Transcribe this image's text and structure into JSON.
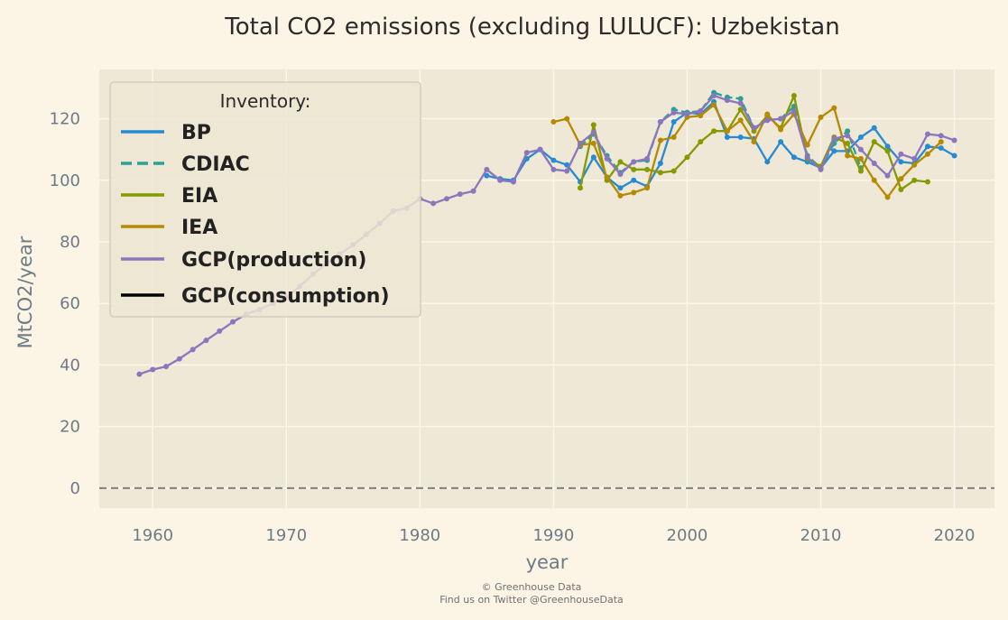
{
  "chart_data": {
    "type": "line",
    "title": "Total CO2 emissions (excluding LULUCF): Uzbekistan",
    "xlabel": "year",
    "ylabel": "MtCO2/year",
    "xlim": [
      1956,
      2023
    ],
    "ylim": [
      -6.5,
      136
    ],
    "x_ticks": [
      1960,
      1970,
      1980,
      1990,
      2000,
      2010,
      2020
    ],
    "y_ticks": [
      0,
      20,
      40,
      60,
      80,
      100,
      120
    ],
    "grid": true,
    "zero_line": true,
    "legend": {
      "title": "Inventory:",
      "placement": "upper-left",
      "entries": [
        "BP",
        "CDIAC",
        "EIA",
        "IEA",
        "GCP(production)",
        "GCP(consumption)"
      ]
    },
    "credit": [
      "© Greenhouse Data",
      "Find us on Twitter @GreenhouseData"
    ],
    "series": [
      {
        "name": "BP",
        "color": "#268bd2",
        "dash": false,
        "x": [
          1985,
          1986,
          1987,
          1988,
          1989,
          1990,
          1991,
          1992,
          1993,
          1994,
          1995,
          1996,
          1997,
          1998,
          1999,
          2000,
          2001,
          2002,
          2003,
          2004,
          2005,
          2006,
          2007,
          2008,
          2009,
          2010,
          2011,
          2012,
          2013,
          2014,
          2015,
          2016,
          2017,
          2018,
          2019,
          2020
        ],
        "y": [
          101.5,
          100.5,
          100,
          107,
          110,
          106.5,
          105,
          99.5,
          107.5,
          101,
          97.5,
          100,
          98,
          105.5,
          119,
          122,
          121.5,
          125.5,
          114,
          114,
          113.5,
          106,
          112.5,
          107.5,
          106,
          104,
          109.5,
          109.5,
          114,
          117,
          111,
          106,
          105.5,
          111,
          110.5,
          108
        ]
      },
      {
        "name": "CDIAC",
        "color": "#2aa198",
        "dash": true,
        "x": [
          1992,
          1993,
          1994,
          1995,
          1996,
          1997,
          1998,
          1999,
          2000,
          2001,
          2002,
          2003,
          2004,
          2005,
          2006,
          2007,
          2008,
          2009,
          2010,
          2011,
          2012,
          2013
        ],
        "y": [
          111,
          115,
          108,
          102.5,
          106,
          106.5,
          119,
          123,
          122,
          122.5,
          128.5,
          127,
          126.5,
          117,
          119.5,
          120,
          124,
          108,
          104,
          112,
          116,
          104
        ]
      },
      {
        "name": "EIA",
        "color": "#859900",
        "dash": false,
        "x": [
          1992,
          1993,
          1994,
          1995,
          1996,
          1997,
          1998,
          1999,
          2000,
          2001,
          2002,
          2003,
          2004,
          2005,
          2006,
          2007,
          2008,
          2009,
          2010,
          2011,
          2012,
          2013,
          2014,
          2015,
          2016,
          2017,
          2018
        ],
        "y": [
          97.5,
          118,
          100,
          106,
          103.5,
          103.5,
          102.5,
          103,
          107.5,
          112.5,
          116,
          116,
          123,
          116,
          121,
          117,
          127.5,
          107,
          104.5,
          114,
          112,
          103,
          112.5,
          109.5,
          97,
          100,
          99.5
        ]
      },
      {
        "name": "IEA",
        "color": "#b58900",
        "dash": false,
        "x": [
          1990,
          1991,
          1992,
          1993,
          1994,
          1995,
          1996,
          1997,
          1998,
          1999,
          2000,
          2001,
          2002,
          2003,
          2004,
          2005,
          2006,
          2007,
          2008,
          2009,
          2010,
          2011,
          2012,
          2013,
          2014,
          2015,
          2016,
          2017,
          2018,
          2019
        ],
        "y": [
          119,
          120,
          111.5,
          112,
          101,
          95,
          96,
          97.5,
          113,
          114,
          120.5,
          121,
          124.5,
          116,
          119.5,
          112.5,
          121.5,
          116.5,
          121.5,
          111.5,
          120.5,
          123.5,
          108,
          107,
          100,
          94.5,
          100.5,
          105,
          108.5,
          112.5
        ]
      },
      {
        "name": "GCP(production)",
        "color": "#8b76bd",
        "dash": false,
        "x": [
          1959,
          1960,
          1961,
          1962,
          1963,
          1964,
          1965,
          1966,
          1967,
          1968,
          1969,
          1970,
          1971,
          1972,
          1973,
          1974,
          1975,
          1976,
          1977,
          1978,
          1979,
          1980,
          1981,
          1982,
          1983,
          1984,
          1985,
          1986,
          1987,
          1988,
          1989,
          1990,
          1991,
          1992,
          1993,
          1994,
          1995,
          1996,
          1997,
          1998,
          1999,
          2000,
          2001,
          2002,
          2003,
          2004,
          2005,
          2006,
          2007,
          2008,
          2009,
          2010,
          2011,
          2012,
          2013,
          2014,
          2015,
          2016,
          2017,
          2018,
          2019,
          2020
        ],
        "y": [
          37,
          38.5,
          39.5,
          42,
          45,
          48,
          51,
          54,
          56.5,
          58,
          60,
          62,
          65.5,
          69.5,
          73,
          76,
          79,
          82.5,
          86,
          90,
          91,
          94,
          92.5,
          94,
          95.5,
          96.5,
          103.5,
          100,
          99.5,
          109,
          110,
          103.5,
          103,
          112,
          115.5,
          107,
          102,
          106,
          107,
          119,
          122,
          121.5,
          122.5,
          127.5,
          126,
          125,
          117,
          119.5,
          120,
          122.5,
          107.5,
          103.5,
          113.5,
          114.5,
          110,
          105.5,
          101.5,
          108.5,
          107,
          115,
          114.5,
          113
        ]
      }
    ]
  }
}
